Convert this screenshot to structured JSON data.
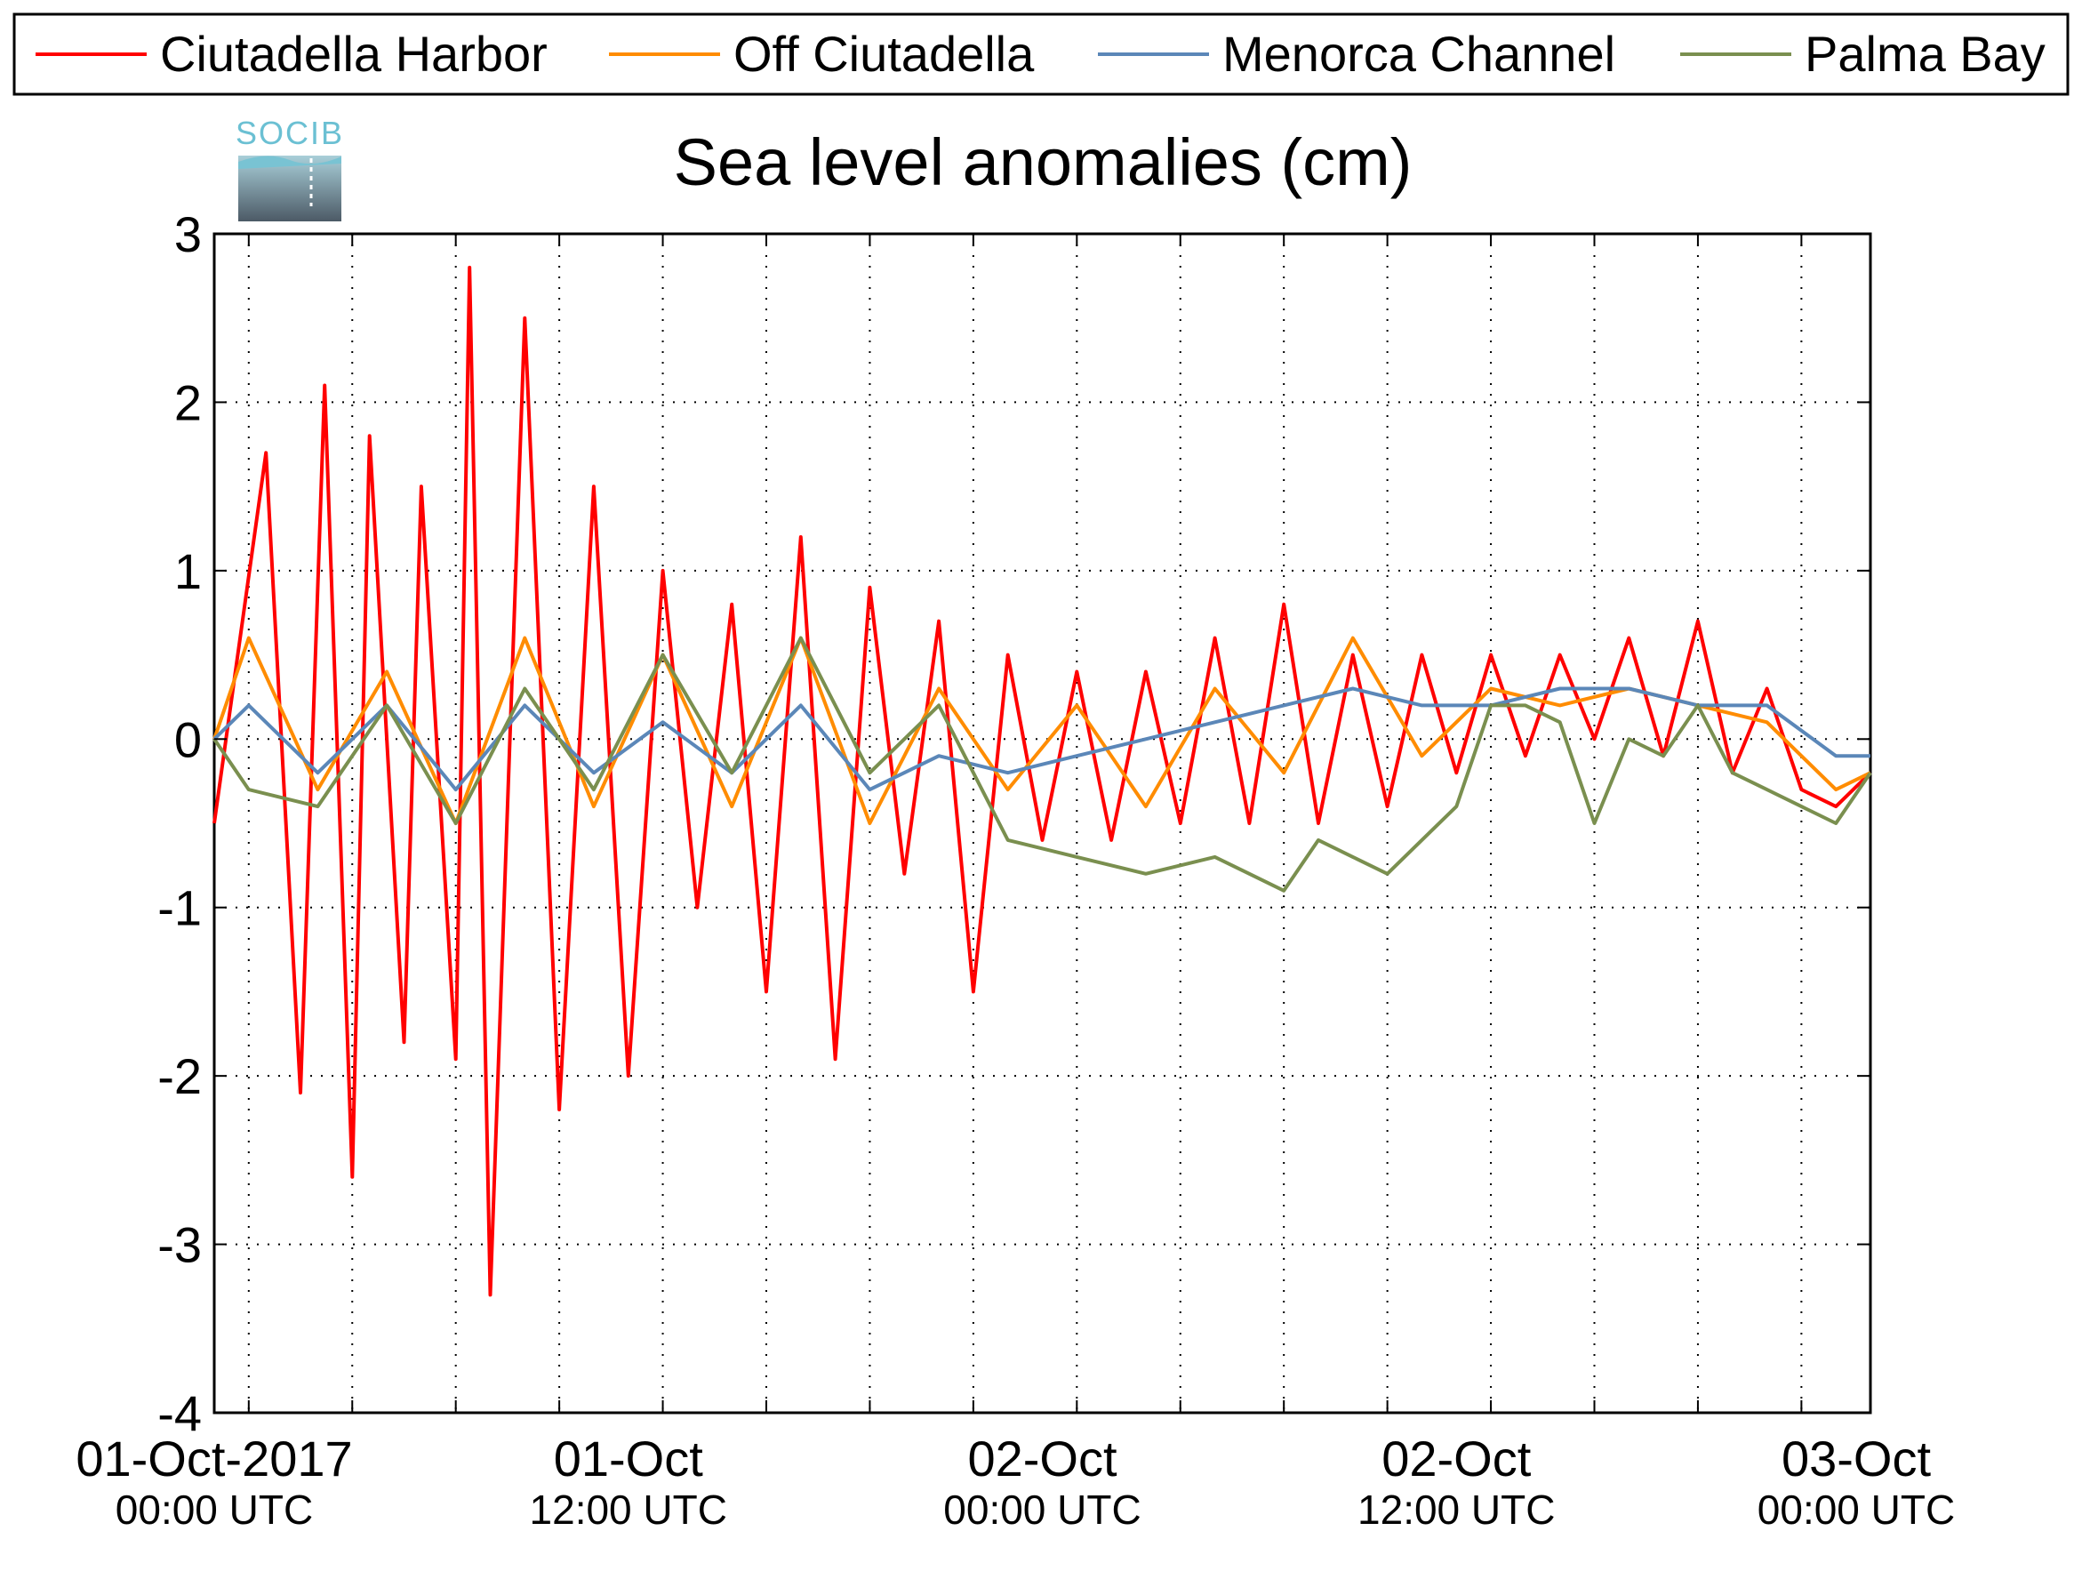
{
  "chart_data": {
    "type": "line",
    "title": "Sea level anomalies (cm)",
    "logo_text": "SOCIB",
    "xlabel": "",
    "ylabel": "",
    "ylim": [
      -4,
      3
    ],
    "yticks": [
      -4,
      -3,
      -2,
      -1,
      0,
      1,
      2,
      3
    ],
    "y_tick_labels": [
      "-4",
      "-3",
      "-2",
      "-1",
      "0",
      "1",
      "2",
      "3"
    ],
    "xlim": [
      "2017-10-01T00:00",
      "2017-10-03T00:00"
    ],
    "xlim_hours": [
      -1,
      47
    ],
    "x_minor_tick_hours": [
      0,
      3,
      6,
      9,
      12,
      15,
      18,
      21,
      24,
      27,
      30,
      33,
      36,
      39,
      42,
      45
    ],
    "x_major_ticks": [
      {
        "hour": 3,
        "label": "01-Oct-2017",
        "sub": "00:00 UTC"
      },
      {
        "hour": 15,
        "label": "01-Oct",
        "sub": "12:00 UTC"
      },
      {
        "hour": 27,
        "label": "02-Oct",
        "sub": "00:00 UTC"
      },
      {
        "hour": 39,
        "label": "02-Oct",
        "sub": "12:00 UTC"
      },
      {
        "hour": 51,
        "label": "03-Oct",
        "sub": "00:00 UTC"
      }
    ],
    "grid": true,
    "legend_position": "top",
    "series": [
      {
        "name": "Ciutadella Harbor",
        "color": "#ff0000",
        "x": [
          -1,
          0.5,
          1.5,
          2.2,
          3,
          3.5,
          4.5,
          5,
          6,
          6.4,
          7,
          8,
          9,
          10,
          11,
          12,
          13,
          14,
          15,
          16,
          17,
          18,
          19,
          20,
          21,
          22,
          23,
          24,
          25,
          26,
          27,
          28,
          29,
          30,
          31,
          32,
          33,
          34,
          35,
          36,
          37,
          38,
          39,
          40,
          41,
          42,
          43,
          44,
          45,
          46,
          47
        ],
        "y": [
          -0.5,
          1.7,
          -2.1,
          2.1,
          -2.6,
          1.8,
          -1.8,
          1.5,
          -1.9,
          2.8,
          -3.3,
          2.5,
          -2.2,
          1.5,
          -2.0,
          1.0,
          -1.0,
          0.8,
          -1.5,
          1.2,
          -1.9,
          0.9,
          -0.8,
          0.7,
          -1.5,
          0.5,
          -0.6,
          0.4,
          -0.6,
          0.4,
          -0.5,
          0.6,
          -0.5,
          0.8,
          -0.5,
          0.5,
          -0.4,
          0.5,
          -0.2,
          0.5,
          -0.1,
          0.5,
          0.0,
          0.6,
          -0.1,
          0.7,
          -0.2,
          0.3,
          -0.3,
          -0.4,
          -0.2
        ]
      },
      {
        "name": "Off Ciutadella",
        "color": "#ff8c00",
        "x": [
          -1,
          0,
          2,
          4,
          6,
          8,
          10,
          12,
          14,
          16,
          18,
          20,
          22,
          24,
          26,
          28,
          30,
          32,
          34,
          36,
          38,
          40,
          42,
          44,
          46,
          47
        ],
        "y": [
          0.0,
          0.6,
          -0.3,
          0.4,
          -0.5,
          0.6,
          -0.4,
          0.5,
          -0.4,
          0.6,
          -0.5,
          0.3,
          -0.3,
          0.2,
          -0.4,
          0.3,
          -0.2,
          0.6,
          -0.1,
          0.3,
          0.2,
          0.3,
          0.2,
          0.1,
          -0.3,
          -0.2
        ]
      },
      {
        "name": "Menorca Channel",
        "color": "#5b87b8",
        "x": [
          -1,
          0,
          2,
          4,
          6,
          8,
          10,
          12,
          14,
          16,
          18,
          20,
          22,
          24,
          26,
          28,
          30,
          32,
          34,
          36,
          38,
          40,
          42,
          44,
          46,
          47
        ],
        "y": [
          0.0,
          0.2,
          -0.2,
          0.2,
          -0.3,
          0.2,
          -0.2,
          0.1,
          -0.2,
          0.2,
          -0.3,
          -0.1,
          -0.2,
          -0.1,
          0.0,
          0.1,
          0.2,
          0.3,
          0.2,
          0.2,
          0.3,
          0.3,
          0.2,
          0.2,
          -0.1,
          -0.1
        ]
      },
      {
        "name": "Palma Bay",
        "color": "#7a8f4f",
        "x": [
          -1,
          0,
          2,
          4,
          6,
          8,
          10,
          12,
          14,
          16,
          18,
          20,
          22,
          24,
          26,
          28,
          30,
          31,
          32,
          33,
          34,
          35,
          36,
          37,
          38,
          39,
          40,
          41,
          42,
          43,
          44,
          45,
          46,
          47
        ],
        "y": [
          0.0,
          -0.3,
          -0.4,
          0.2,
          -0.5,
          0.3,
          -0.3,
          0.5,
          -0.2,
          0.6,
          -0.2,
          0.2,
          -0.6,
          -0.7,
          -0.8,
          -0.7,
          -0.9,
          -0.6,
          -0.7,
          -0.8,
          -0.6,
          -0.4,
          0.2,
          0.2,
          0.1,
          -0.5,
          0.0,
          -0.1,
          0.2,
          -0.2,
          -0.3,
          -0.4,
          -0.5,
          -0.2
        ]
      }
    ]
  }
}
